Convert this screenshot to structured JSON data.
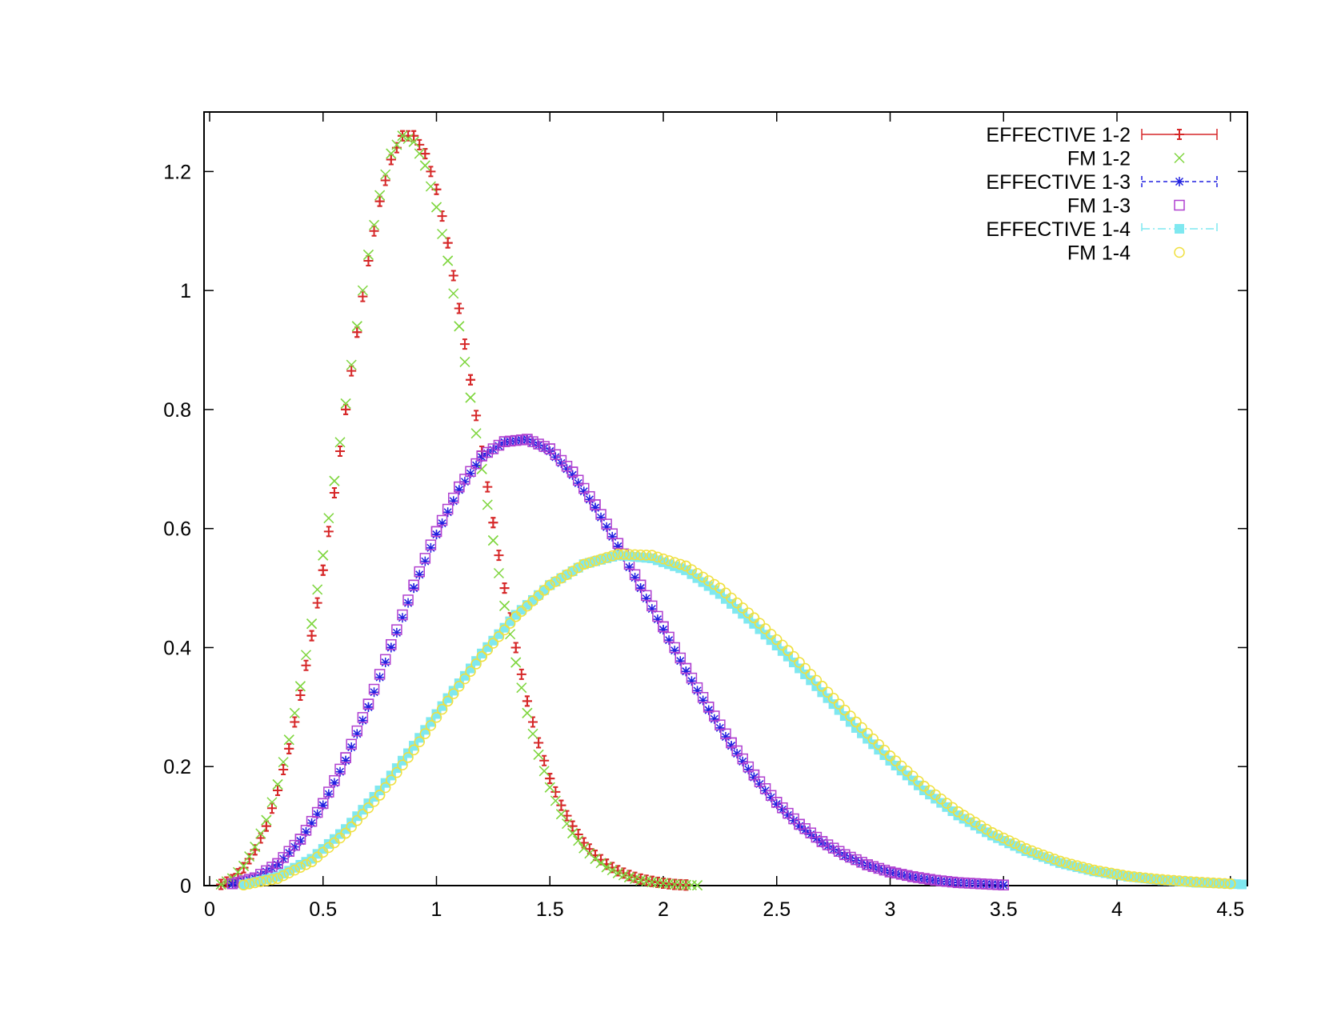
{
  "chart_data": {
    "type": "scatter",
    "title": "",
    "xlabel": "",
    "ylabel": "",
    "xlim": [
      0,
      4.6
    ],
    "ylim": [
      0,
      1.3
    ],
    "x_ticks": [
      0,
      0.5,
      1,
      1.5,
      2,
      2.5,
      3,
      3.5,
      4,
      4.5
    ],
    "x_tick_labels": [
      "0",
      "0.5",
      "1",
      "1.5",
      "2",
      "2.5",
      "3",
      "3.5",
      "4",
      "4.5"
    ],
    "y_ticks": [
      0,
      0.2,
      0.4,
      0.6,
      0.8,
      1,
      1.2
    ],
    "y_tick_labels": [
      "0",
      "0.2",
      "0.4",
      "0.6",
      "0.8",
      "1",
      "1.2"
    ],
    "grid": false,
    "legend_position": "top-right",
    "series": [
      {
        "name": "EFFECTIVE 1-2",
        "marker": "plus-errorbar",
        "color": "#d62728",
        "x": [
          0.05,
          0.1,
          0.15,
          0.2,
          0.25,
          0.3,
          0.35,
          0.4,
          0.45,
          0.5,
          0.55,
          0.6,
          0.65,
          0.7,
          0.75,
          0.8,
          0.85,
          0.9,
          0.95,
          1.0,
          1.05,
          1.1,
          1.15,
          1.2,
          1.25,
          1.3,
          1.35,
          1.4,
          1.45,
          1.5,
          1.55,
          1.6,
          1.65,
          1.7,
          1.75,
          1.8,
          1.85,
          1.9,
          1.95,
          2.0,
          2.05,
          2.1
        ],
        "y": [
          0.002,
          0.01,
          0.03,
          0.06,
          0.1,
          0.16,
          0.23,
          0.32,
          0.42,
          0.53,
          0.66,
          0.8,
          0.93,
          1.05,
          1.15,
          1.22,
          1.26,
          1.26,
          1.23,
          1.17,
          1.08,
          0.97,
          0.85,
          0.73,
          0.61,
          0.5,
          0.4,
          0.31,
          0.24,
          0.18,
          0.135,
          0.1,
          0.072,
          0.051,
          0.036,
          0.025,
          0.017,
          0.011,
          0.007,
          0.004,
          0.002,
          0.001
        ]
      },
      {
        "name": "FM 1-2",
        "marker": "cross",
        "color": "#7fd63f",
        "x": [
          0.05,
          0.1,
          0.15,
          0.2,
          0.25,
          0.3,
          0.35,
          0.4,
          0.45,
          0.5,
          0.55,
          0.6,
          0.65,
          0.7,
          0.75,
          0.8,
          0.85,
          0.9,
          0.95,
          1.0,
          1.05,
          1.1,
          1.15,
          1.2,
          1.25,
          1.3,
          1.35,
          1.4,
          1.45,
          1.5,
          1.55,
          1.6,
          1.65,
          1.7,
          1.75,
          1.8,
          1.85,
          1.9,
          1.95,
          2.0,
          2.05,
          2.1,
          2.15
        ],
        "y": [
          0.002,
          0.012,
          0.033,
          0.065,
          0.11,
          0.17,
          0.245,
          0.335,
          0.44,
          0.555,
          0.68,
          0.81,
          0.94,
          1.06,
          1.16,
          1.23,
          1.26,
          1.25,
          1.21,
          1.14,
          1.05,
          0.94,
          0.82,
          0.7,
          0.58,
          0.47,
          0.375,
          0.29,
          0.22,
          0.165,
          0.12,
          0.088,
          0.063,
          0.045,
          0.031,
          0.021,
          0.014,
          0.009,
          0.006,
          0.004,
          0.002,
          0.001,
          0.0005
        ]
      },
      {
        "name": "EFFECTIVE 1-3",
        "marker": "asterisk",
        "color": "#2020e0",
        "x": [
          0.1,
          0.2,
          0.3,
          0.4,
          0.5,
          0.6,
          0.7,
          0.8,
          0.9,
          1.0,
          1.1,
          1.2,
          1.3,
          1.4,
          1.5,
          1.6,
          1.7,
          1.8,
          1.9,
          2.0,
          2.1,
          2.2,
          2.3,
          2.4,
          2.5,
          2.6,
          2.7,
          2.8,
          2.9,
          3.0,
          3.1,
          3.2,
          3.3,
          3.4,
          3.5
        ],
        "y": [
          0.002,
          0.012,
          0.035,
          0.075,
          0.135,
          0.21,
          0.3,
          0.4,
          0.5,
          0.59,
          0.665,
          0.72,
          0.745,
          0.75,
          0.73,
          0.69,
          0.635,
          0.57,
          0.5,
          0.43,
          0.36,
          0.295,
          0.235,
          0.182,
          0.137,
          0.1,
          0.072,
          0.05,
          0.034,
          0.022,
          0.014,
          0.008,
          0.005,
          0.003,
          0.001
        ]
      },
      {
        "name": "FM 1-3",
        "marker": "square-open",
        "color": "#b040d0",
        "x": [
          0.1,
          0.2,
          0.3,
          0.4,
          0.5,
          0.6,
          0.7,
          0.8,
          0.9,
          1.0,
          1.1,
          1.2,
          1.3,
          1.4,
          1.5,
          1.6,
          1.7,
          1.8,
          1.9,
          2.0,
          2.1,
          2.2,
          2.3,
          2.4,
          2.5,
          2.6,
          2.7,
          2.8,
          2.9,
          3.0,
          3.1,
          3.2,
          3.3,
          3.4,
          3.5
        ],
        "y": [
          0.003,
          0.013,
          0.037,
          0.078,
          0.138,
          0.215,
          0.305,
          0.405,
          0.505,
          0.595,
          0.67,
          0.722,
          0.746,
          0.75,
          0.734,
          0.695,
          0.64,
          0.575,
          0.505,
          0.435,
          0.365,
          0.3,
          0.24,
          0.186,
          0.14,
          0.103,
          0.074,
          0.052,
          0.035,
          0.023,
          0.015,
          0.009,
          0.005,
          0.003,
          0.001
        ]
      },
      {
        "name": "EFFECTIVE 1-4",
        "marker": "square-filled",
        "color": "#7fe8f0",
        "x": [
          0.15,
          0.3,
          0.45,
          0.6,
          0.75,
          0.9,
          1.05,
          1.2,
          1.35,
          1.5,
          1.65,
          1.8,
          1.95,
          2.1,
          2.25,
          2.4,
          2.55,
          2.7,
          2.85,
          3.0,
          3.15,
          3.3,
          3.45,
          3.6,
          3.75,
          3.9,
          4.05,
          4.2,
          4.35,
          4.5,
          4.55
        ],
        "y": [
          0.002,
          0.015,
          0.045,
          0.095,
          0.16,
          0.235,
          0.315,
          0.39,
          0.455,
          0.505,
          0.54,
          0.555,
          0.55,
          0.53,
          0.49,
          0.44,
          0.385,
          0.325,
          0.265,
          0.21,
          0.16,
          0.118,
          0.084,
          0.058,
          0.038,
          0.024,
          0.015,
          0.009,
          0.005,
          0.003,
          0.002
        ]
      },
      {
        "name": "FM 1-4",
        "marker": "circle-open",
        "color": "#f0e040",
        "x": [
          0.15,
          0.3,
          0.45,
          0.6,
          0.75,
          0.9,
          1.05,
          1.2,
          1.35,
          1.5,
          1.65,
          1.8,
          1.95,
          2.1,
          2.25,
          2.4,
          2.55,
          2.7,
          2.85,
          3.0,
          3.15,
          3.3,
          3.45,
          3.6,
          3.75,
          3.9,
          4.05,
          4.2,
          4.35,
          4.5
        ],
        "y": [
          0.001,
          0.012,
          0.04,
          0.088,
          0.152,
          0.228,
          0.31,
          0.385,
          0.452,
          0.505,
          0.54,
          0.557,
          0.555,
          0.537,
          0.5,
          0.45,
          0.395,
          0.335,
          0.275,
          0.218,
          0.167,
          0.124,
          0.089,
          0.062,
          0.041,
          0.026,
          0.016,
          0.01,
          0.006,
          0.003
        ]
      }
    ]
  }
}
